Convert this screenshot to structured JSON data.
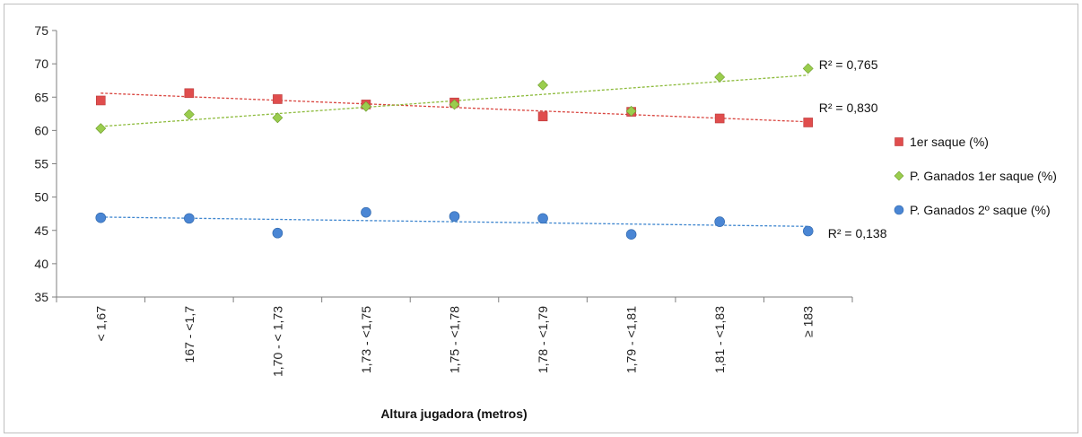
{
  "chart_data": {
    "type": "scatter",
    "categories": [
      "< 1,67",
      "167 - <1,7",
      "1,70 - < 1,73",
      "1,73 - <1,75",
      "1,75 - <1,78",
      "1,78 - <1,79",
      "1,79 - <1,81",
      "1,81 - <1,83",
      "≥ 183"
    ],
    "xlabel": "Altura jugadora (metros)",
    "ylabel": "",
    "ylim": [
      35,
      75
    ],
    "yticks": [
      35,
      40,
      45,
      50,
      55,
      60,
      65,
      70,
      75
    ],
    "grid": false,
    "legend_position": "right",
    "series": [
      {
        "name": "1er saque (%)",
        "marker": "square",
        "color": "#e04d4d",
        "trend_color": "#d9453f",
        "values": [
          64.5,
          65.6,
          64.7,
          63.9,
          64.2,
          62.1,
          62.8,
          61.8,
          61.2
        ],
        "trend": [
          65.6,
          61.3
        ],
        "r2_label": "R² = 0,830"
      },
      {
        "name": "P. Ganados 1er saque (%)",
        "marker": "diamond",
        "color": "#9acd4e",
        "trend_color": "#8dbb3c",
        "values": [
          60.3,
          62.4,
          61.9,
          63.6,
          63.9,
          66.8,
          62.9,
          68.0,
          69.3
        ],
        "trend": [
          60.6,
          68.3
        ],
        "r2_label": "R² = 0,765"
      },
      {
        "name": "P. Ganados 2º saque (%)",
        "marker": "circle",
        "color": "#4a86d4",
        "trend_color": "#3f86cf",
        "values": [
          46.9,
          46.8,
          44.6,
          47.7,
          47.1,
          46.8,
          44.4,
          46.3,
          44.9
        ],
        "trend": [
          47.0,
          45.6
        ],
        "r2_label": "R² = 0,138"
      }
    ]
  }
}
